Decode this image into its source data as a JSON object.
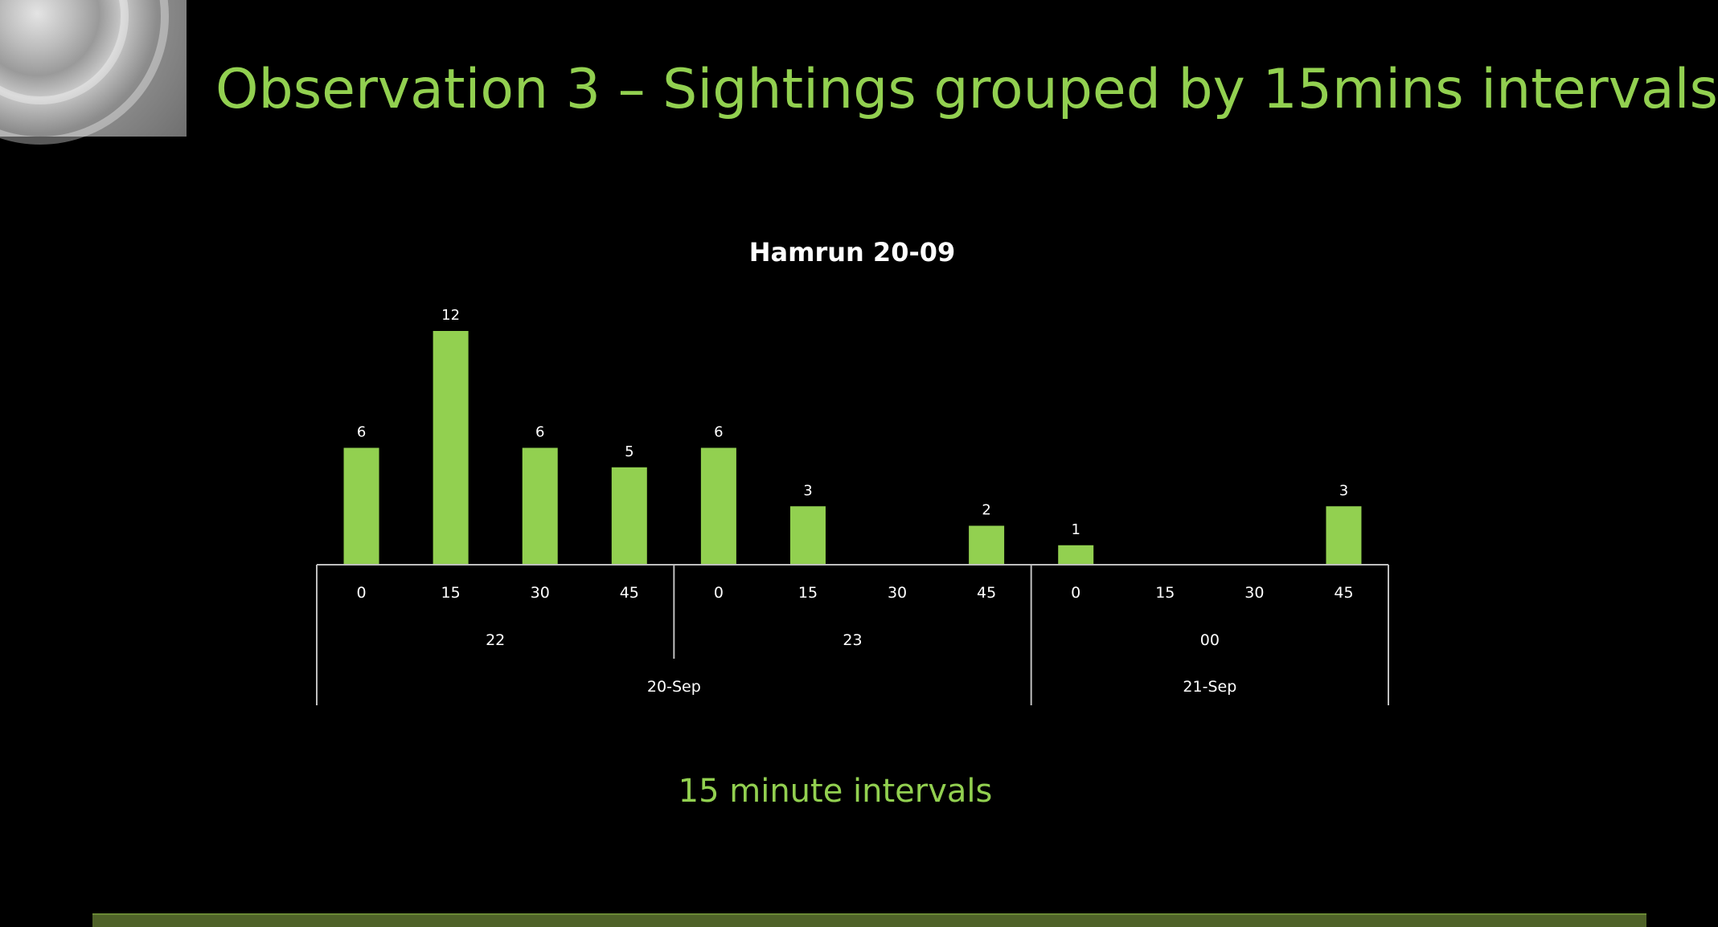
{
  "slide": {
    "title": "Observation 3 – Sightings grouped by 15mins intervals",
    "caption": "15 minute intervals"
  },
  "colors": {
    "background": "#000000",
    "accent": "#92d050",
    "text_light": "#ffffff",
    "axis": "#bfbfbf",
    "footer": "#4f6228"
  },
  "chart_data": {
    "type": "bar",
    "title": "Hamrun 20-09",
    "xlabel": "",
    "ylabel": "",
    "categories": [
      "0",
      "15",
      "30",
      "45",
      "0",
      "15",
      "30",
      "45",
      "0",
      "15",
      "30",
      "45"
    ],
    "values": [
      6,
      12,
      6,
      5,
      6,
      3,
      0,
      2,
      1,
      0,
      0,
      3
    ],
    "data_labels": [
      "6",
      "12",
      "6",
      "5",
      "6",
      "3",
      "",
      "2",
      "1",
      "",
      "",
      "3"
    ],
    "hour_groups": [
      {
        "label": "22",
        "count": 4
      },
      {
        "label": "23",
        "count": 4
      },
      {
        "label": "00",
        "count": 4
      }
    ],
    "date_groups": [
      {
        "label": "20-Sep",
        "count": 8
      },
      {
        "label": "21-Sep",
        "count": 4
      }
    ],
    "ylim": [
      0,
      12
    ],
    "grid": false,
    "legend": "none",
    "bar_color": "#92d050"
  }
}
